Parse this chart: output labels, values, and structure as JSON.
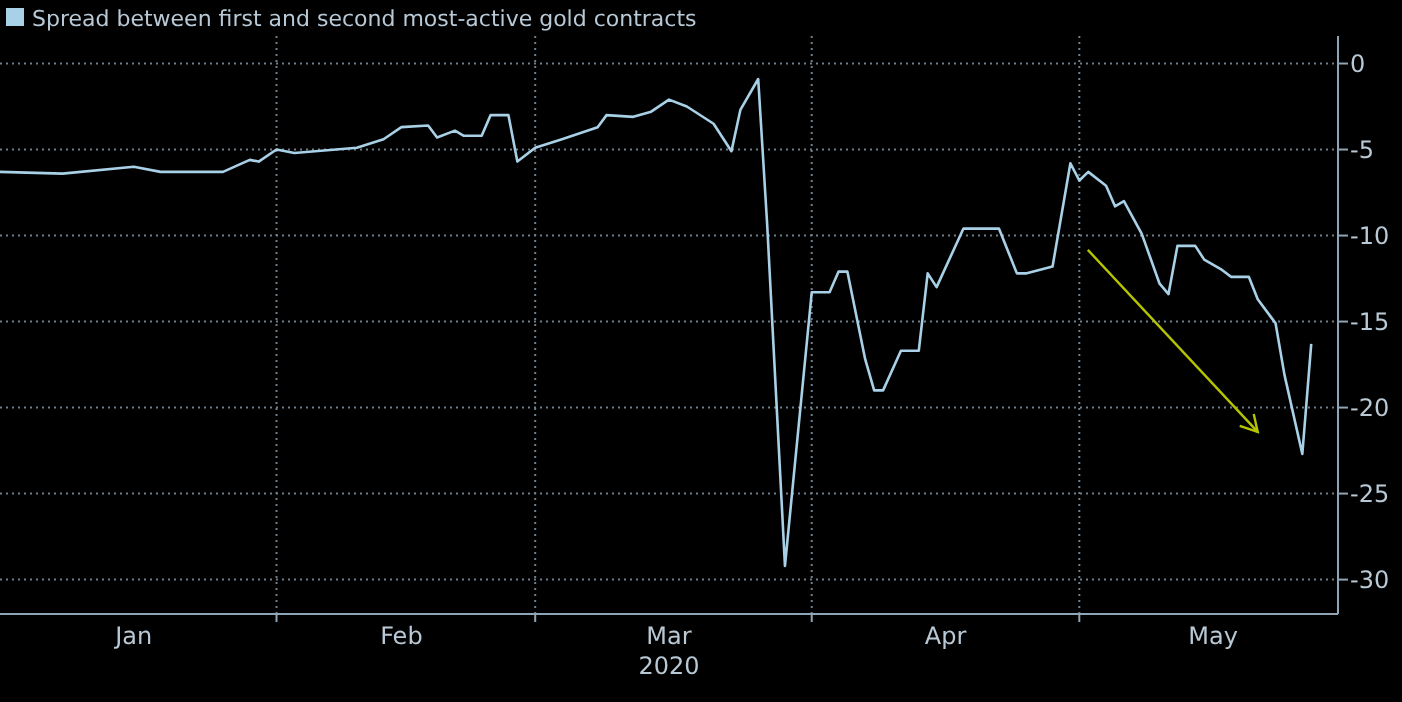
{
  "chart_data": {
    "type": "line",
    "legend": "top left",
    "grid": true,
    "x": [
      "2020-01-01",
      "2020-01-08",
      "2020-01-16",
      "2020-01-19",
      "2020-01-26",
      "2020-01-29",
      "2020-01-30",
      "2020-02-01",
      "2020-02-03",
      "2020-02-10",
      "2020-02-13",
      "2020-02-15",
      "2020-02-18",
      "2020-02-19",
      "2020-02-21",
      "2020-02-22",
      "2020-02-24",
      "2020-02-25",
      "2020-02-27",
      "2020-02-28",
      "2020-03-01",
      "2020-03-04",
      "2020-03-08",
      "2020-03-09",
      "2020-03-12",
      "2020-03-14",
      "2020-03-16",
      "2020-03-18",
      "2020-03-21",
      "2020-03-23",
      "2020-03-24",
      "2020-03-26",
      "2020-03-27",
      "2020-03-29",
      "2020-04-01",
      "2020-04-03",
      "2020-04-04",
      "2020-04-05",
      "2020-04-07",
      "2020-04-08",
      "2020-04-09",
      "2020-04-11",
      "2020-04-13",
      "2020-04-14",
      "2020-04-15",
      "2020-04-18",
      "2020-04-22",
      "2020-04-24",
      "2020-04-25",
      "2020-04-28",
      "2020-04-30",
      "2020-05-01",
      "2020-05-02",
      "2020-05-04",
      "2020-05-05",
      "2020-05-06",
      "2020-05-08",
      "2020-05-10",
      "2020-05-11",
      "2020-05-12",
      "2020-05-14",
      "2020-05-15",
      "2020-05-17",
      "2020-05-18",
      "2020-05-20",
      "2020-05-21",
      "2020-05-23",
      "2020-05-24",
      "2020-05-26",
      "2020-05-27"
    ],
    "series": [
      {
        "name": "Spread between first and second most-active gold contracts",
        "color": "#a8d0e6",
        "values": [
          -6.3,
          -6.4,
          -6.0,
          -6.3,
          -6.3,
          -5.6,
          -5.7,
          -5.0,
          -5.2,
          -4.9,
          -4.4,
          -3.7,
          -3.6,
          -4.3,
          -3.9,
          -4.2,
          -4.2,
          -3.0,
          -3.0,
          -5.7,
          -4.9,
          -4.4,
          -3.7,
          -3.0,
          -3.1,
          -2.8,
          -2.1,
          -2.5,
          -3.5,
          -5.1,
          -2.7,
          -0.9,
          -9.3,
          -29.2,
          -13.3,
          -13.3,
          -12.1,
          -12.1,
          -17.2,
          -19.0,
          -19.0,
          -16.7,
          -16.7,
          -12.2,
          -13.0,
          -9.6,
          -9.6,
          -12.2,
          -12.2,
          -11.8,
          -5.8,
          -6.8,
          -6.3,
          -7.1,
          -8.3,
          -8.0,
          -9.9,
          -12.8,
          -13.4,
          -10.6,
          -10.6,
          -11.4,
          -12.0,
          -12.4,
          -12.4,
          -13.7,
          -15.1,
          -18.1,
          -22.7,
          -16.3
        ]
      }
    ],
    "xlim": [
      "2020-01-01",
      "2020-05-30"
    ],
    "xticks": [
      {
        "value": "2020-01-16",
        "label": "Jan"
      },
      {
        "value": "2020-02-01",
        "label": null
      },
      {
        "value": "2020-02-15",
        "label": "Feb"
      },
      {
        "value": "2020-03-01",
        "label": null
      },
      {
        "value": "2020-03-16",
        "label": "Mar\n2020"
      },
      {
        "value": "2020-04-01",
        "label": null
      },
      {
        "value": "2020-04-16",
        "label": "Apr"
      },
      {
        "value": "2020-05-01",
        "label": null
      },
      {
        "value": "2020-05-16",
        "label": "May"
      }
    ],
    "ylim": [
      -32,
      1.6
    ],
    "yticks": [
      0,
      -5,
      -10,
      -15,
      -20,
      -25,
      -30
    ]
  }
}
